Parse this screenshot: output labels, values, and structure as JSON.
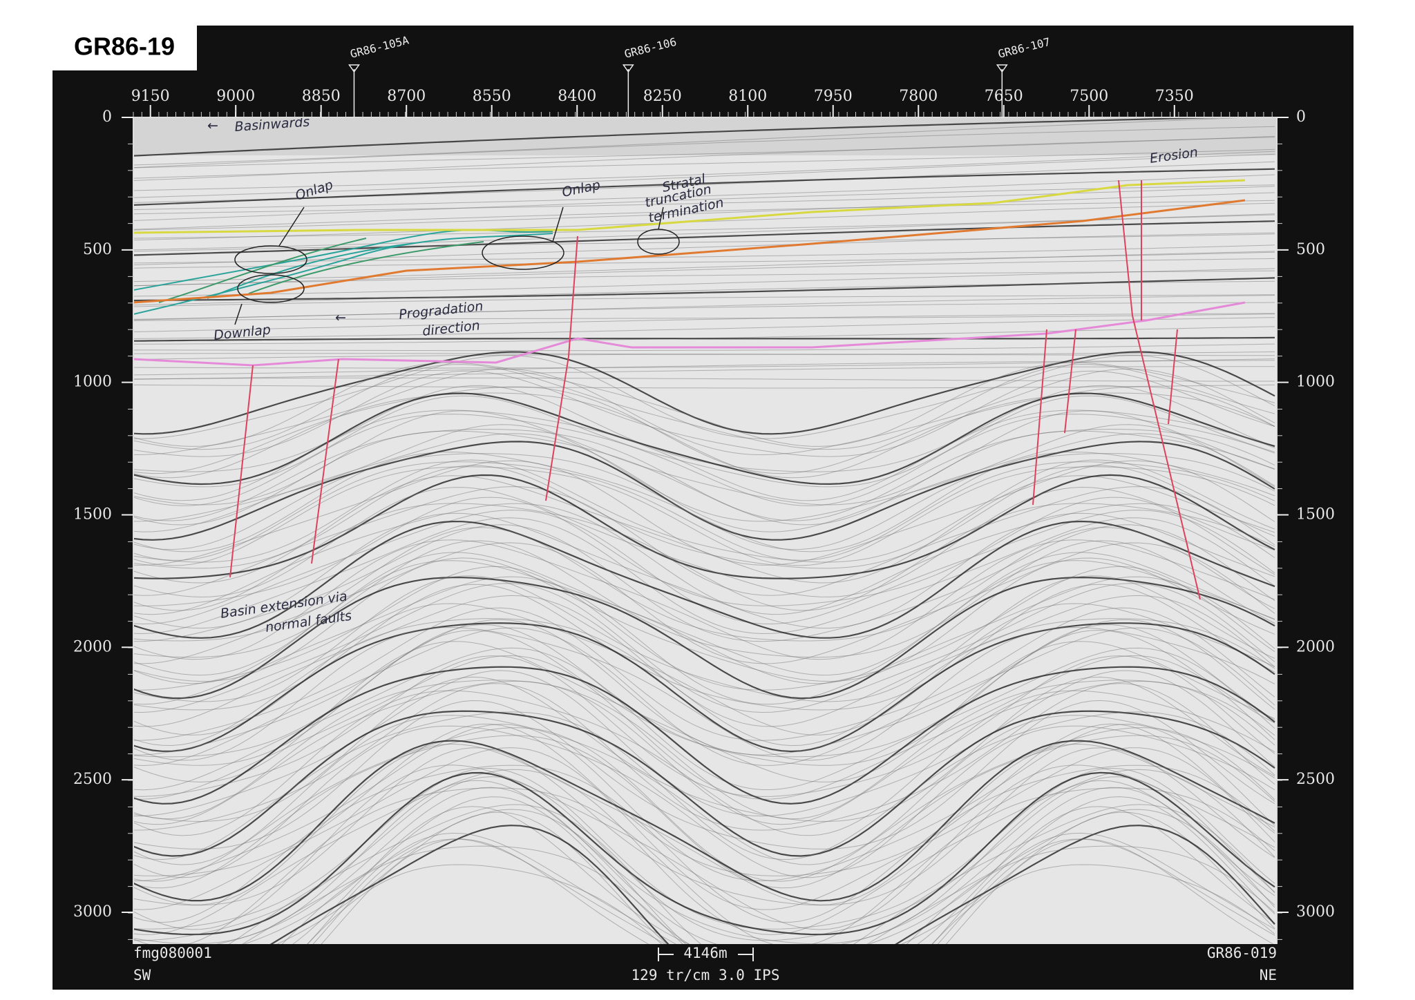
{
  "title": "GR86-19",
  "shotpoint_axis": {
    "range": [
      9180,
      7170
    ],
    "ticks": [
      9150,
      9000,
      8850,
      8700,
      8550,
      8400,
      8250,
      8100,
      7950,
      7800,
      7650,
      7500,
      7350
    ]
  },
  "time_axis": {
    "range": [
      0,
      3120
    ],
    "ticks": [
      0,
      500,
      1000,
      1500,
      2000,
      2500,
      3000
    ]
  },
  "wells": [
    {
      "label": "GR86-105A",
      "shotpoint": 8792
    },
    {
      "label": "GR86-106",
      "shotpoint": 8310
    },
    {
      "label": "GR86-107",
      "shotpoint": 7653
    }
  ],
  "annotations": [
    "Basinwards",
    "Onlap",
    "Onlap",
    "Stratal",
    "truncation",
    "termination",
    "Downlap",
    "Progradation",
    "direction",
    "Basin extension via",
    "normal faults",
    "Erosion"
  ],
  "footer": {
    "file_id": "fmg080001",
    "left_direction": "SW",
    "scale_bar": "4146m",
    "display_settings": "129 tr/cm 3.0 IPS",
    "line_id": "GR86-019",
    "right_direction": "NE"
  }
}
